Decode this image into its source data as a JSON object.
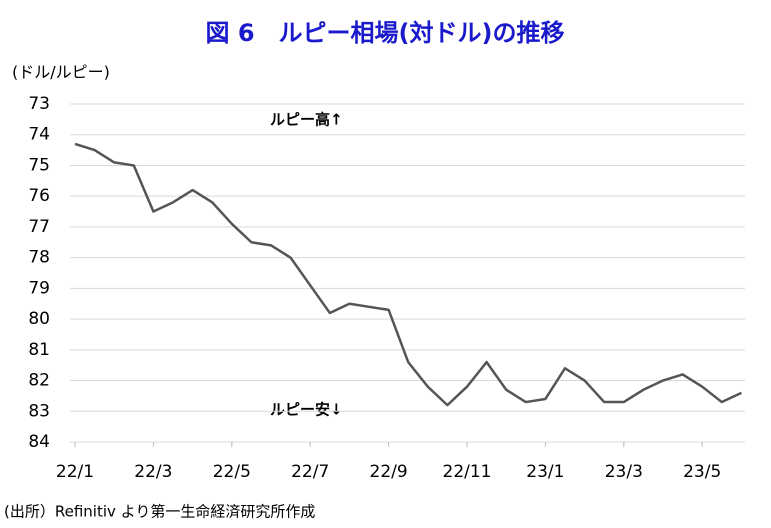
{
  "chart_data": {
    "type": "line",
    "title": "図 6　ルピー相場(対ドル)の推移",
    "y_label": "(ドル/ルピー)",
    "source": "(出所）Refinitiv より第一生命経済研究所作成",
    "annotations": [
      "ルピー高↑",
      "ルピー安↓"
    ],
    "categories": [
      "22/1",
      null,
      null,
      null,
      "22/3",
      null,
      null,
      null,
      "22/5",
      null,
      null,
      null,
      "22/7",
      null,
      null,
      null,
      "22/9",
      null,
      null,
      null,
      "22/11",
      null,
      null,
      null,
      "23/1",
      null,
      null,
      null,
      "23/3",
      null,
      null,
      null,
      "23/5",
      null,
      null
    ],
    "values": [
      74.3,
      74.5,
      74.9,
      75.0,
      76.5,
      76.2,
      75.8,
      76.2,
      76.9,
      77.5,
      77.6,
      78.0,
      78.9,
      79.8,
      79.5,
      79.6,
      79.7,
      81.4,
      82.2,
      82.8,
      82.2,
      81.4,
      82.3,
      82.7,
      82.6,
      81.6,
      82.0,
      82.7,
      82.7,
      82.3,
      82.0,
      81.8,
      82.2,
      82.7,
      82.4
    ],
    "color": "#555555",
    "ylim": [
      73,
      84
    ],
    "yticks": [
      73,
      74,
      75,
      76,
      77,
      78,
      79,
      80,
      81,
      82,
      83,
      84
    ],
    "y_inverted": true,
    "grid": true
  }
}
